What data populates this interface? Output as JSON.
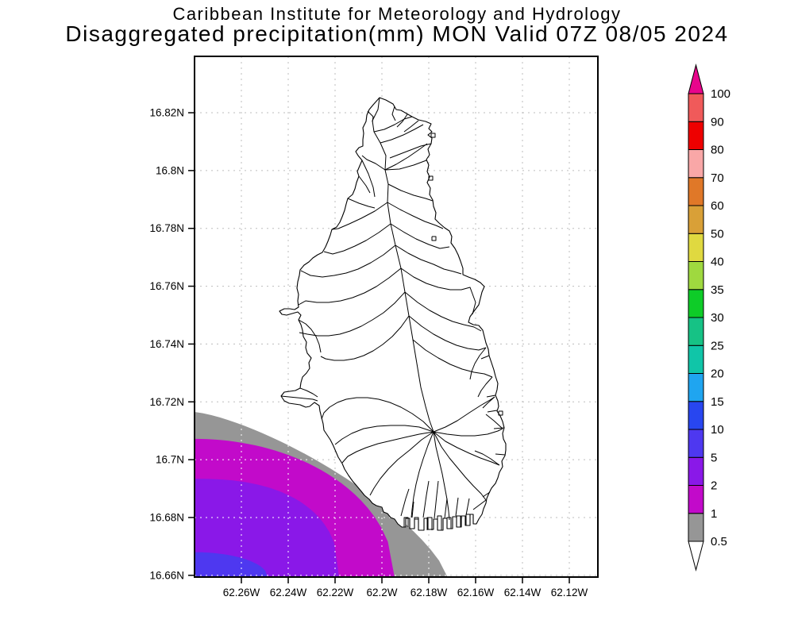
{
  "title": {
    "line1": "Caribbean Institute for Meteorology and Hydrology",
    "line2": "Disaggregated precipitation(mm) MON Valid 07Z 08/05 2024"
  },
  "chart_data": {
    "type": "map-contour",
    "title": "Disaggregated precipitation(mm) MON Valid 07Z 08/05 2024",
    "organization": "Caribbean Institute for Meteorology and Hydrology",
    "region_label": "MON",
    "valid_time": "07Z 08/05 2024",
    "units": "mm",
    "grid": "dashed",
    "lat_axis": {
      "ticks": [
        {
          "value": 16.82,
          "label": "16.82N"
        },
        {
          "value": 16.8,
          "label": "16.8N"
        },
        {
          "value": 16.78,
          "label": "16.78N"
        },
        {
          "value": 16.76,
          "label": "16.76N"
        },
        {
          "value": 16.74,
          "label": "16.74N"
        },
        {
          "value": 16.72,
          "label": "16.72N"
        },
        {
          "value": 16.7,
          "label": "16.7N"
        },
        {
          "value": 16.68,
          "label": "16.68N"
        },
        {
          "value": 16.66,
          "label": "16.66N"
        }
      ],
      "range": [
        16.6594,
        16.8395
      ]
    },
    "lon_axis": {
      "ticks": [
        {
          "value": 62.26,
          "label": "62.26W"
        },
        {
          "value": 62.24,
          "label": "62.24W"
        },
        {
          "value": 62.22,
          "label": "62.22W"
        },
        {
          "value": 62.2,
          "label": "62.2W"
        },
        {
          "value": 62.18,
          "label": "62.18W"
        },
        {
          "value": 62.16,
          "label": "62.16W"
        },
        {
          "value": 62.14,
          "label": "62.14W"
        },
        {
          "value": 62.12,
          "label": "62.12W"
        }
      ],
      "range": [
        62.28,
        62.1078
      ]
    },
    "colorbar": {
      "boundary_labels": [
        "0.5",
        "1",
        "2",
        "5",
        "10",
        "15",
        "20",
        "25",
        "30",
        "35",
        "40",
        "50",
        "60",
        "70",
        "80",
        "90",
        "100"
      ],
      "segment_colors_bottom_to_top": [
        "#969696",
        "#C20ACA",
        "#8A18E8",
        "#4E38F0",
        "#2846F0",
        "#1FA5F0",
        "#10C5A8",
        "#16C285",
        "#0ECC28",
        "#9FD93F",
        "#E0D940",
        "#D9A037",
        "#E07828",
        "#F9A7A7",
        "#EE0000",
        "#F05A5A"
      ],
      "above_max_color": "#E8058C",
      "below_min_color": "#FFFFFF"
    },
    "precip_bands": [
      {
        "range_mm": "0.5-1",
        "color": "#969696",
        "lon_reach_w": 62.172,
        "lat_reach_n": 16.7165,
        "shape_n": 1.35
      },
      {
        "range_mm": "1-2",
        "color": "#C20ACA",
        "lon_reach_w": 62.1946,
        "lat_reach_n": 16.7072,
        "shape_n": 2.0
      },
      {
        "range_mm": "2-5",
        "color": "#8A18E8",
        "lon_reach_w": 62.2183,
        "lat_reach_n": 16.6934,
        "shape_n": 2.4
      },
      {
        "range_mm": "5-10",
        "color": "#4E38F0",
        "lon_reach_w": 62.2488,
        "lat_reach_n": 16.668,
        "shape_n": 2.0
      }
    ]
  }
}
